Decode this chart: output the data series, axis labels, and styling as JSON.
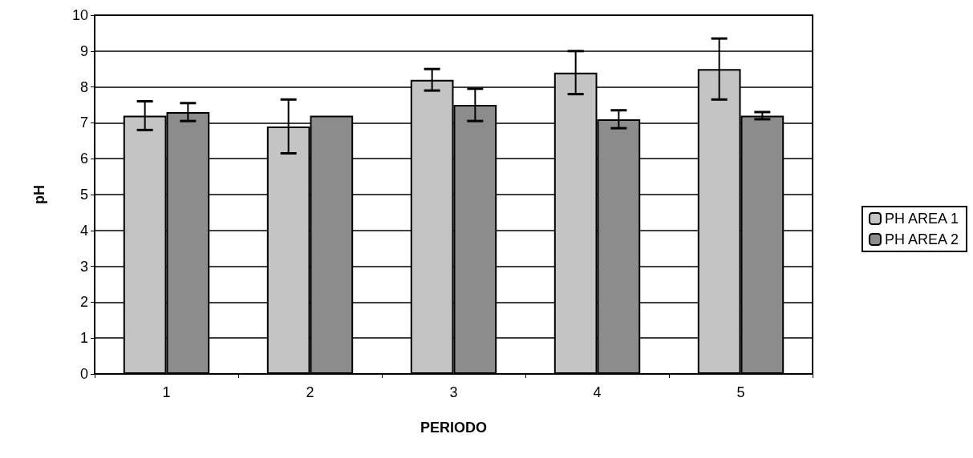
{
  "chart_data": {
    "type": "bar",
    "xlabel": "PERIODO",
    "ylabel": "pH",
    "categories": [
      "1",
      "2",
      "3",
      "4",
      "5"
    ],
    "series": [
      {
        "name": "PH AREA 1",
        "color": "#c4c4c4",
        "values": [
          7.2,
          6.9,
          8.2,
          8.4,
          8.5
        ],
        "errors": [
          0.4,
          0.75,
          0.3,
          0.6,
          0.85
        ]
      },
      {
        "name": "PH AREA 2",
        "color": "#8c8c8c",
        "values": [
          7.3,
          7.2,
          7.5,
          7.1,
          7.2
        ],
        "errors": [
          0.25,
          null,
          0.45,
          0.25,
          0.1
        ]
      }
    ],
    "ylim": [
      0,
      10
    ],
    "yticks": [
      0,
      1,
      2,
      3,
      4,
      5,
      6,
      7,
      8,
      9,
      10
    ],
    "grid": "y",
    "legend": "right"
  }
}
